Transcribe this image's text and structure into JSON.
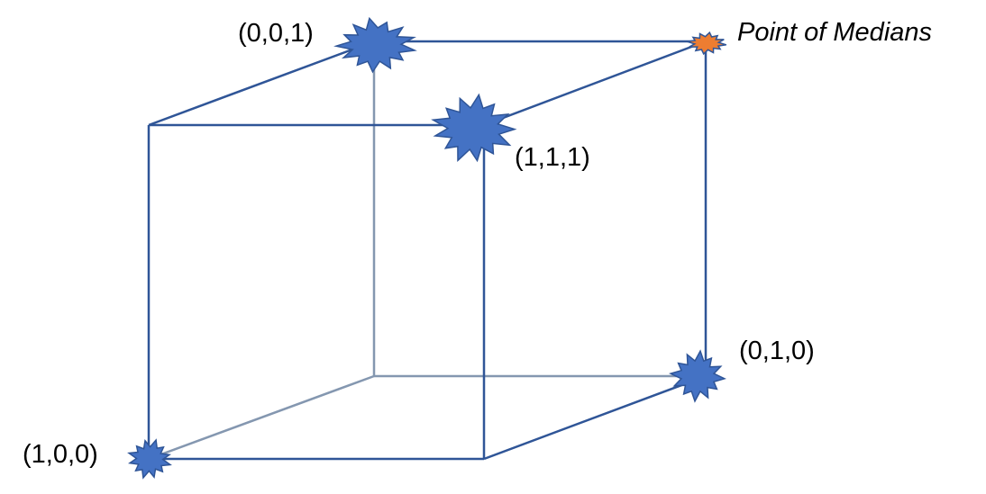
{
  "diagram": {
    "colors": {
      "edge_front": "#2F5597",
      "edge_back": "#8497B0",
      "star_fill": "#4472C4",
      "star_stroke": "#2F5597",
      "median_fill": "#ED7D31"
    },
    "labels": {
      "v001": "(0,0,1)",
      "v111": "(1,1,1)",
      "v010": "(0,1,0)",
      "v100": "(1,0,0)",
      "median": "Point of Medians"
    },
    "markers": [
      {
        "id": "v001",
        "icon": "explosion-star-icon"
      },
      {
        "id": "v111",
        "icon": "explosion-star-icon"
      },
      {
        "id": "v010",
        "icon": "explosion-star-icon"
      },
      {
        "id": "v100",
        "icon": "explosion-star-icon"
      },
      {
        "id": "median",
        "icon": "explosion-star-icon"
      }
    ]
  }
}
